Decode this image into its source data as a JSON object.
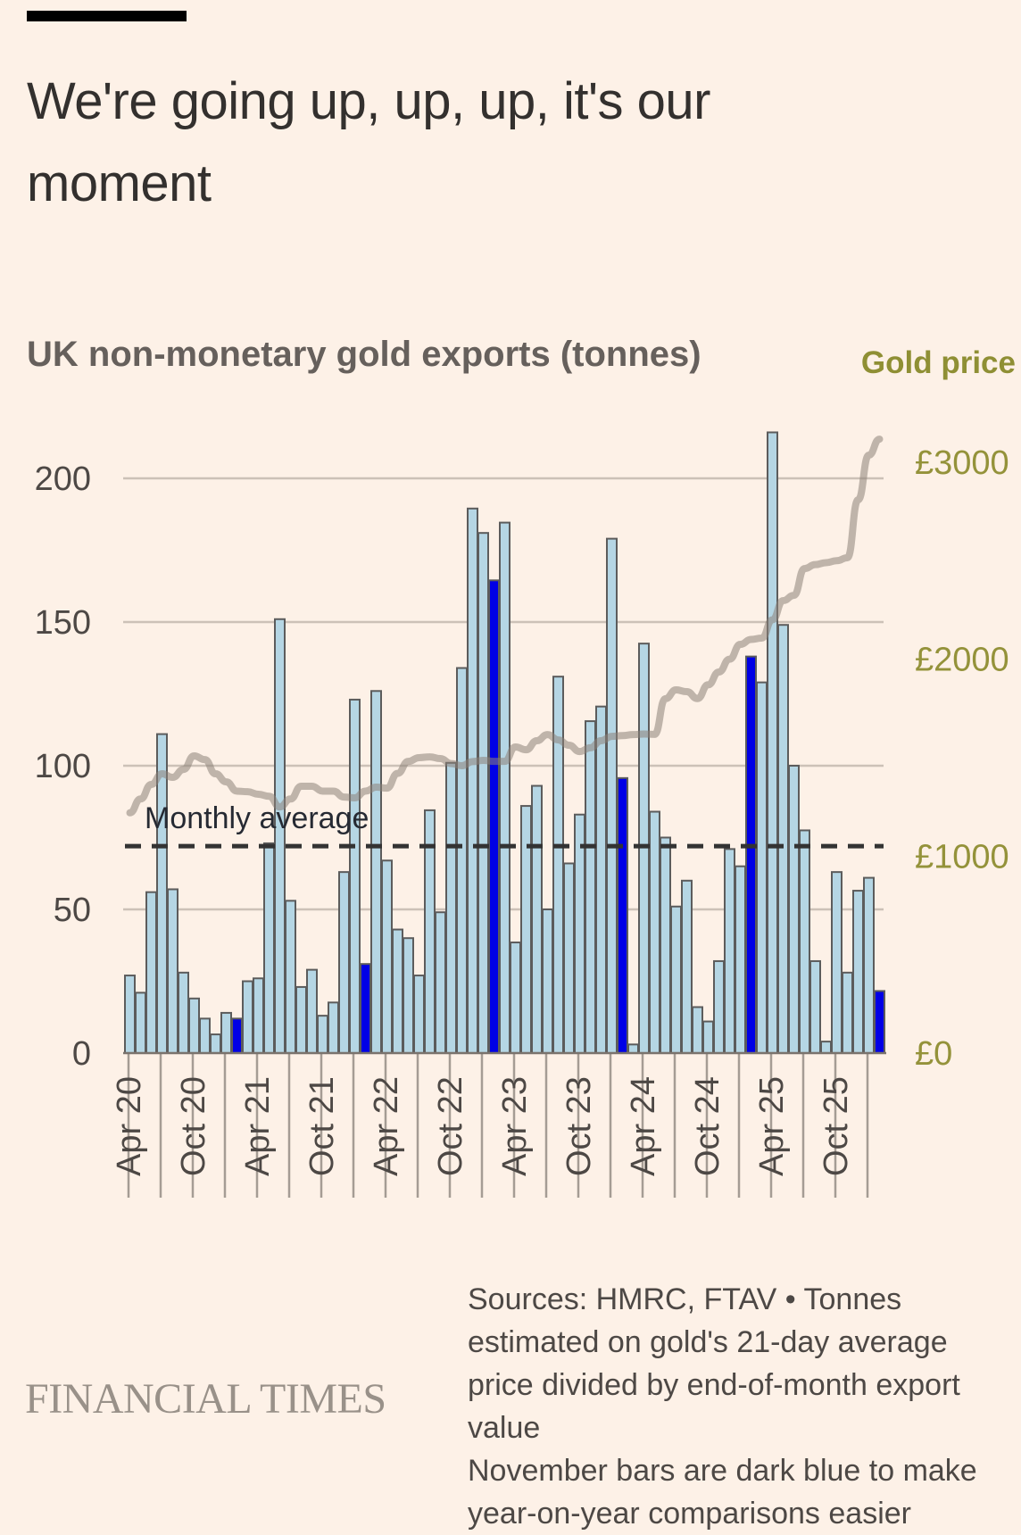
{
  "header": {
    "title_line1": "We're going up, up, up, it's our",
    "title_line2": "moment"
  },
  "chart_data": {
    "type": "bar",
    "title": "UK non-monetary gold exports (tonnes)",
    "secondary_title": "Gold price",
    "xlabel": "",
    "ylabel": "UK non-monetary gold exports (tonnes)",
    "y2label": "Gold price",
    "ylim": [
      0,
      220
    ],
    "y_ticks": [
      0,
      50,
      100,
      150,
      200
    ],
    "y_tick_labels": [
      "0",
      "50",
      "100",
      "150",
      "200"
    ],
    "y2lim": [
      0,
      3300
    ],
    "y2_ticks": [
      0,
      1000,
      2000,
      3000
    ],
    "y2_tick_labels": [
      "£0",
      "£1000",
      "£2000",
      "£3000"
    ],
    "grid": true,
    "x_tick_labels": [
      "Apr 20",
      "Oct 20",
      "Apr 21",
      "Oct 21",
      "Apr 22",
      "Oct 22",
      "Apr 23",
      "Oct 23",
      "Apr 24",
      "Oct 24",
      "Apr 25",
      "Oct 25"
    ],
    "categories": [
      "Jan 20",
      "Feb 20",
      "Mar 20",
      "Apr 20",
      "May 20",
      "Jun 20",
      "Jul 20",
      "Aug 20",
      "Sep 20",
      "Oct 20",
      "Nov 20",
      "Dec 20",
      "Jan 21",
      "Feb 21",
      "Mar 21",
      "Apr 21",
      "May 21",
      "Jun 21",
      "Jul 21",
      "Aug 21",
      "Sep 21",
      "Oct 21",
      "Nov 21",
      "Dec 21",
      "Jan 22",
      "Feb 22",
      "Mar 22",
      "Apr 22",
      "May 22",
      "Jun 22",
      "Jul 22",
      "Aug 22",
      "Sep 22",
      "Oct 22",
      "Nov 22",
      "Dec 22",
      "Jan 23",
      "Feb 23",
      "Mar 23",
      "Apr 23",
      "May 23",
      "Jun 23",
      "Jul 23",
      "Aug 23",
      "Sep 23",
      "Oct 23",
      "Nov 23",
      "Dec 23",
      "Jan 24",
      "Feb 24",
      "Mar 24",
      "Apr 24",
      "May 24",
      "Jun 24",
      "Jul 24",
      "Aug 24",
      "Sep 24",
      "Oct 24",
      "Nov 24",
      "Dec 24",
      "Jan 25",
      "Feb 25",
      "Mar 25",
      "Apr 25",
      "May 25",
      "Jun 25",
      "Jul 25",
      "Aug 25",
      "Sep 25",
      "Oct 25",
      "Nov 25"
    ],
    "series": [
      {
        "name": "UK non-monetary gold exports (tonnes)",
        "type": "bar",
        "axis": "left",
        "color": "#b5d6e4",
        "highlight_color": "#0000e6",
        "highlight_rule": "November bars",
        "values": [
          27,
          21,
          56,
          111,
          57,
          28,
          19,
          12,
          6.5,
          14,
          12,
          25,
          26,
          73,
          151,
          53,
          23,
          29,
          13,
          17.6,
          63,
          123,
          31,
          126,
          67,
          43,
          40,
          27,
          84.5,
          49,
          101,
          134,
          189.5,
          181,
          164.5,
          184.6,
          38.5,
          86,
          93,
          50,
          131,
          66,
          83,
          115.5,
          120.6,
          179,
          95.7,
          3,
          142.5,
          84,
          75,
          51,
          60,
          16,
          11,
          32,
          71,
          65,
          138,
          129,
          216,
          149,
          100,
          77.5,
          32,
          4,
          63,
          28,
          56.5,
          61,
          21.6
        ]
      },
      {
        "name": "Gold price",
        "type": "line",
        "axis": "right",
        "color": "#b4aca4",
        "values": [
          1220,
          1290,
          1364,
          1418,
          1400,
          1440,
          1509,
          1490,
          1418,
          1377,
          1330,
          1327,
          1314,
          1304,
          1250,
          1290,
          1355,
          1355,
          1330,
          1330,
          1300,
          1296,
          1330,
          1350,
          1345,
          1420,
          1481,
          1500,
          1504,
          1495,
          1470,
          1459,
          1480,
          1486,
          1481,
          1481,
          1554,
          1540,
          1586,
          1617,
          1590,
          1563,
          1531,
          1550,
          1586,
          1608,
          1612,
          1617,
          1620,
          1618,
          1799,
          1844,
          1835,
          1800,
          1870,
          1935,
          2000,
          2075,
          2100,
          2107,
          2200,
          2297,
          2324,
          2460,
          2480,
          2490,
          2500,
          2515,
          2809,
          3036,
          3117
        ]
      }
    ],
    "reference_lines": [
      {
        "label": "Monthly average",
        "value": 72,
        "style": "dashed",
        "axis": "left"
      }
    ],
    "legend": "none"
  },
  "footer": {
    "brand": "FINANCIAL TIMES",
    "note_lines": [
      "Sources: HMRC, FTAV • Tonnes",
      "estimated on gold's 21-day average",
      "price divided by end-of-month export",
      "value",
      "November bars are dark blue to make",
      "year-on-year comparisons easier"
    ]
  }
}
